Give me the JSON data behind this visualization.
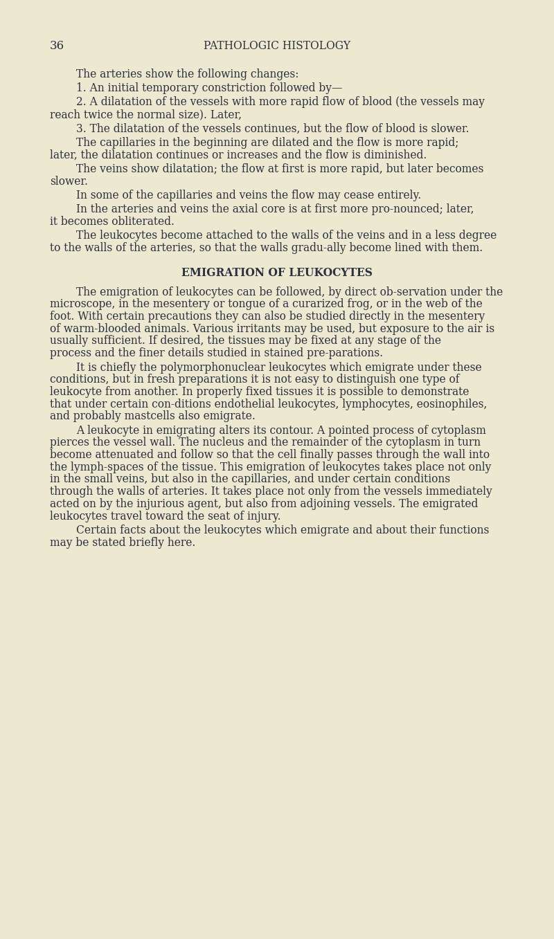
{
  "background_color": "#ede8d0",
  "page_number": "36",
  "header": "PATHOLOGIC HISTOLOGY",
  "text_color": "#2a3040",
  "body_fontsize": 11.2,
  "header_fontsize": 11.2,
  "pagenum_fontsize": 12,
  "section_heading": "EMIGRATION OF LEUKOCYTES",
  "content": [
    {
      "type": "para_indent",
      "text": "The arteries show the following changes:"
    },
    {
      "type": "para_indent",
      "text": "1.  An initial temporary constriction followed by—"
    },
    {
      "type": "para_indent",
      "text": "2.  A dilatation of the vessels with more rapid flow of blood (the vessels may reach twice the normal size).   Later,"
    },
    {
      "type": "para_indent",
      "text": "3.  The dilatation of the vessels continues, but the flow of blood is slower."
    },
    {
      "type": "para_indent",
      "text": "The capillaries in the beginning are dilated and the flow is more rapid;  later, the dilatation continues or increases and the flow is diminished."
    },
    {
      "type": "para_indent",
      "text": "The veins show dilatation;  the flow at first is more rapid, but later becomes slower."
    },
    {
      "type": "para_indent",
      "text": "In some of the capillaries and veins the flow may cease entirely."
    },
    {
      "type": "para_indent",
      "text": "In the arteries and veins the axial core is at first more pro-nounced;  later, it becomes obliterated."
    },
    {
      "type": "para_indent",
      "text": "The leukocytes become attached to the walls of the veins and in a less degree to the walls of the arteries, so that the walls gradu-ally become lined with them."
    },
    {
      "type": "section_heading",
      "text": "EMIGRATION OF LEUKOCYTES"
    },
    {
      "type": "para_indent",
      "text": "The emigration of leukocytes can be followed, by direct ob-servation under the microscope, in the mesentery or tongue of a curarized frog, or in the web of the foot.  With certain precautions they can also be studied directly in the mesentery of warm-blooded animals.  Various irritants may be used, but exposure to the air is usually sufficient.  If desired, the tissues may be fixed at any stage of the process and the finer details studied in stained pre-parations."
    },
    {
      "type": "para_indent",
      "text": "It is chiefly the polymorphonuclear leukocytes which emigrate under these conditions, but in fresh preparations it is not easy to distinguish one type of leukocyte from another.  In properly fixed tissues it is possible to demonstrate that under certain con-ditions endothelial leukocytes, lymphocytes, eosinophiles, and probably mastcells also emigrate."
    },
    {
      "type": "para_indent",
      "text": "A leukocyte in emigrating alters its contour.  A pointed process of cytoplasm pierces the vessel wall.  The nucleus and the remainder of the cytoplasm in turn become attenuated and follow so that the cell finally passes through the wall into the lymph-spaces of the tissue.  This emigration of leukocytes takes place not only in the small veins, but also in the capillaries, and under certain conditions through the walls of arteries.  It takes place not only from the vessels immediately acted on by the injurious agent, but also from adjoining vessels.  The emigrated leukocytes travel toward the seat of injury."
    },
    {
      "type": "para_indent",
      "text": "Certain facts about the leukocytes which emigrate and about their functions may be stated briefly here."
    }
  ]
}
